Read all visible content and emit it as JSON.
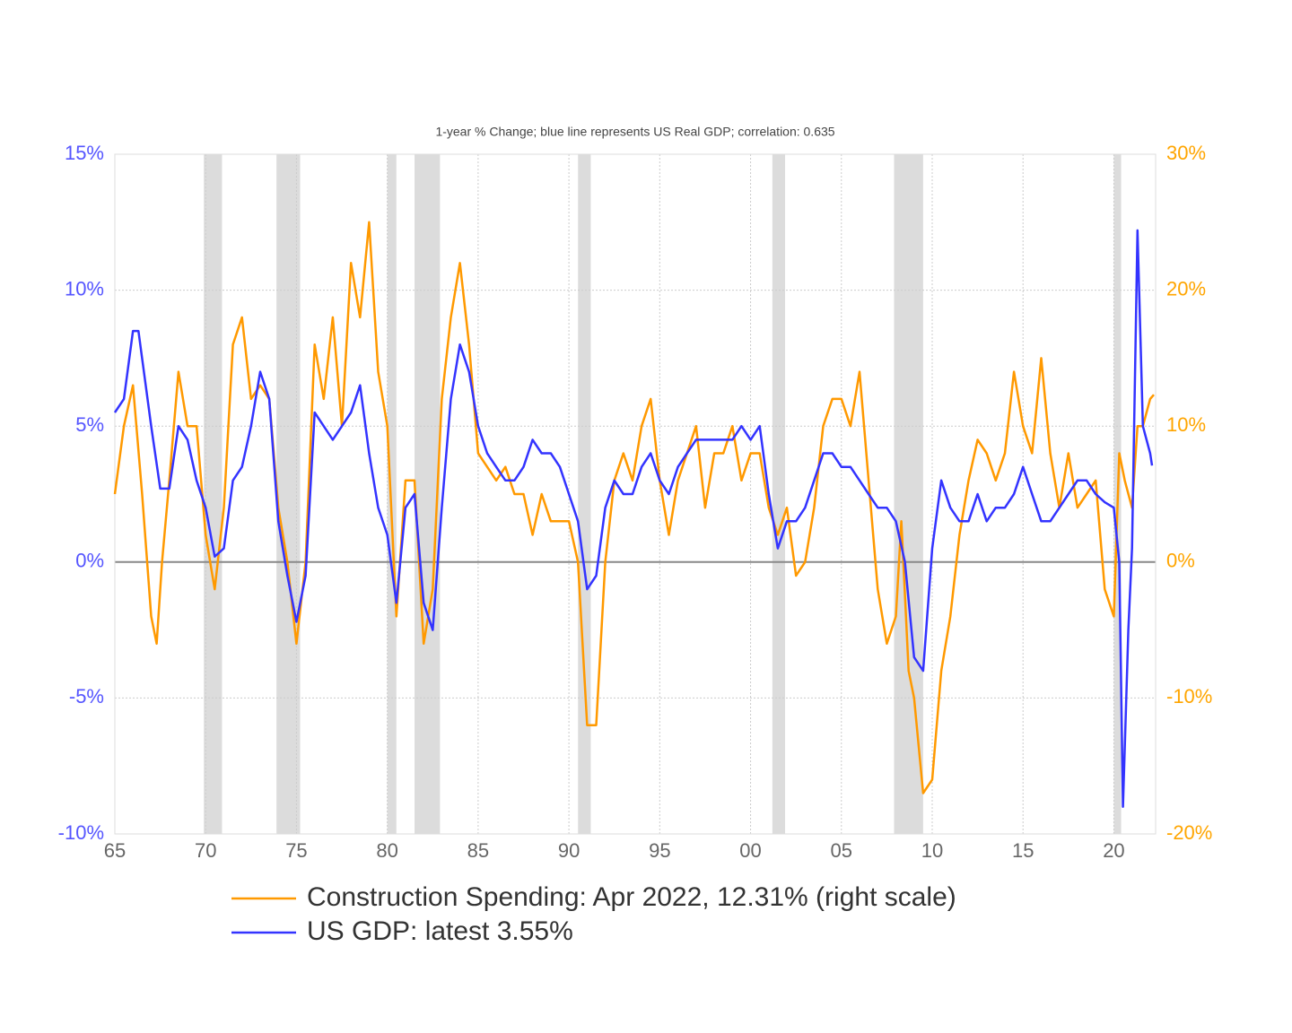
{
  "chart_data": {
    "type": "line",
    "title": "1-year % Change; blue line represents US Real GDP; correlation: 0.635",
    "xlim": [
      1965,
      2022.3
    ],
    "xticks": [
      {
        "value": 1965,
        "label": "65"
      },
      {
        "value": 1970,
        "label": "70"
      },
      {
        "value": 1975,
        "label": "75"
      },
      {
        "value": 1980,
        "label": "80"
      },
      {
        "value": 1985,
        "label": "85"
      },
      {
        "value": 1990,
        "label": "90"
      },
      {
        "value": 1995,
        "label": "95"
      },
      {
        "value": 2000,
        "label": "00"
      },
      {
        "value": 2005,
        "label": "05"
      },
      {
        "value": 2010,
        "label": "10"
      },
      {
        "value": 2015,
        "label": "15"
      },
      {
        "value": 2020,
        "label": "20"
      }
    ],
    "ylim": [
      -10,
      15
    ],
    "yticks": [
      {
        "value": -10,
        "label": "-10%"
      },
      {
        "value": -5,
        "label": "-5%"
      },
      {
        "value": 0,
        "label": "0%"
      },
      {
        "value": 5,
        "label": "5%"
      },
      {
        "value": 10,
        "label": "10%"
      },
      {
        "value": 15,
        "label": "15%"
      }
    ],
    "y2lim": [
      -20,
      30
    ],
    "y2ticks": [
      {
        "value": -20,
        "label": "-20%"
      },
      {
        "value": -10,
        "label": "-10%"
      },
      {
        "value": 0,
        "label": "0%"
      },
      {
        "value": 10,
        "label": "10%"
      },
      {
        "value": 20,
        "label": "20%"
      },
      {
        "value": 30,
        "label": "30%"
      }
    ],
    "grid": true,
    "recessions": [
      [
        1969.9,
        1970.9
      ],
      [
        1973.9,
        1975.2
      ],
      [
        1980.0,
        1980.5
      ],
      [
        1981.5,
        1982.9
      ],
      [
        1990.5,
        1991.2
      ],
      [
        2001.2,
        2001.9
      ],
      [
        2007.9,
        2009.5
      ],
      [
        2020.0,
        2020.4
      ]
    ],
    "series": [
      {
        "name": "Construction Spending: Apr 2022, 12.31% (right scale)",
        "color": "#ff9900",
        "axis": "y2",
        "x": [
          1965,
          1965.5,
          1966,
          1966.5,
          1967,
          1967.3,
          1967.6,
          1968,
          1968.5,
          1969,
          1969.5,
          1970,
          1970.5,
          1971,
          1971.5,
          1972,
          1972.5,
          1973,
          1973.5,
          1974,
          1974.5,
          1975,
          1975.5,
          1976,
          1976.5,
          1977,
          1977.5,
          1978,
          1978.5,
          1979,
          1979.5,
          1980,
          1980.5,
          1981,
          1981.5,
          1982,
          1982.5,
          1983,
          1983.5,
          1984,
          1984.5,
          1985,
          1985.5,
          1986,
          1986.5,
          1987,
          1987.5,
          1988,
          1988.5,
          1989,
          1989.5,
          1990,
          1990.5,
          1991,
          1991.5,
          1992,
          1992.5,
          1993,
          1993.5,
          1994,
          1994.5,
          1995,
          1995.5,
          1996,
          1996.5,
          1997,
          1997.5,
          1998,
          1998.5,
          1999,
          1999.5,
          2000,
          2000.5,
          2001,
          2001.5,
          2002,
          2002.5,
          2003,
          2003.5,
          2004,
          2004.5,
          2005,
          2005.5,
          2006,
          2006.5,
          2007,
          2007.5,
          2008,
          2008.3,
          2008.7,
          2009,
          2009.5,
          2010,
          2010.5,
          2011,
          2011.5,
          2012,
          2012.5,
          2013,
          2013.5,
          2014,
          2014.5,
          2015,
          2015.5,
          2016,
          2016.5,
          2017,
          2017.5,
          2018,
          2018.5,
          2019,
          2019.5,
          2020,
          2020.3,
          2020.6,
          2021,
          2021.3,
          2021.6,
          2022,
          2022.2
        ],
        "values": [
          5,
          10,
          13,
          5,
          -4,
          -6,
          0,
          6,
          14,
          10,
          10,
          2,
          -2,
          4,
          16,
          18,
          12,
          13,
          12,
          4,
          0,
          -6,
          0,
          16,
          12,
          18,
          10,
          22,
          18,
          25,
          14,
          10,
          -4,
          6,
          6,
          -6,
          -2,
          12,
          18,
          22,
          16,
          8,
          7,
          6,
          7,
          5,
          5,
          2,
          5,
          3,
          3,
          3,
          0,
          -12,
          -12,
          0,
          6,
          8,
          6,
          10,
          12,
          6,
          2,
          6,
          8,
          10,
          4,
          8,
          8,
          10,
          6,
          8,
          8,
          4,
          2,
          4,
          -1,
          0,
          4,
          10,
          12,
          12,
          10,
          14,
          6,
          -2,
          -6,
          -4,
          3,
          -8,
          -10,
          -17,
          -16,
          -8,
          -4,
          2,
          6,
          9,
          8,
          6,
          8,
          14,
          10,
          8,
          15,
          8,
          4,
          8,
          4,
          5,
          6,
          -2,
          -4,
          8,
          6,
          4,
          10,
          10,
          12,
          12.31
        ]
      },
      {
        "name": "US GDP: latest 3.55%",
        "color": "#3333ff",
        "x": [
          1965,
          1965.5,
          1966,
          1966.3,
          1967,
          1967.5,
          1968,
          1968.5,
          1969,
          1969.5,
          1970,
          1970.5,
          1971,
          1971.5,
          1972,
          1972.5,
          1973,
          1973.5,
          1974,
          1974.5,
          1975,
          1975.5,
          1976,
          1976.5,
          1977,
          1977.5,
          1978,
          1978.5,
          1979,
          1979.5,
          1980,
          1980.5,
          1981,
          1981.5,
          1982,
          1982.5,
          1983,
          1983.5,
          1984,
          1984.5,
          1985,
          1985.5,
          1986,
          1986.5,
          1987,
          1987.5,
          1988,
          1988.5,
          1989,
          1989.5,
          1990,
          1990.5,
          1991,
          1991.5,
          1992,
          1992.5,
          1993,
          1993.5,
          1994,
          1994.5,
          1995,
          1995.5,
          1996,
          1996.5,
          1997,
          1997.5,
          1998,
          1998.5,
          1999,
          1999.5,
          2000,
          2000.5,
          2001,
          2001.5,
          2002,
          2002.5,
          2003,
          2003.5,
          2004,
          2004.5,
          2005,
          2005.5,
          2006,
          2006.5,
          2007,
          2007.5,
          2008,
          2008.5,
          2009,
          2009.5,
          2010,
          2010.5,
          2011,
          2011.5,
          2012,
          2012.5,
          2013,
          2013.5,
          2014,
          2014.5,
          2015,
          2015.5,
          2016,
          2016.5,
          2017,
          2017.5,
          2018,
          2018.5,
          2019,
          2019.5,
          2020,
          2020.3,
          2020.5,
          2020.8,
          2021,
          2021.3,
          2021.6,
          2022,
          2022.1
        ],
        "values": [
          5.5,
          6,
          8.5,
          8.5,
          5,
          2.7,
          2.7,
          5,
          4.5,
          3,
          2,
          0.2,
          0.5,
          3,
          3.5,
          5,
          7,
          6,
          1.5,
          -0.5,
          -2.2,
          -0.5,
          5.5,
          5,
          4.5,
          5,
          5.5,
          6.5,
          4,
          2,
          1,
          -1.5,
          2,
          2.5,
          -1.5,
          -2.5,
          2,
          6,
          8,
          7,
          5,
          4,
          3.5,
          3,
          3,
          3.5,
          4.5,
          4,
          4,
          3.5,
          2.5,
          1.5,
          -1,
          -0.5,
          2,
          3,
          2.5,
          2.5,
          3.5,
          4,
          3,
          2.5,
          3.5,
          4,
          4.5,
          4.5,
          4.5,
          4.5,
          4.5,
          5,
          4.5,
          5,
          2.5,
          0.5,
          1.5,
          1.5,
          2,
          3,
          4,
          4,
          3.5,
          3.5,
          3,
          2.5,
          2,
          2,
          1.5,
          0,
          -3.5,
          -4,
          0.5,
          3,
          2,
          1.5,
          1.5,
          2.5,
          1.5,
          2,
          2,
          2.5,
          3.5,
          2.5,
          1.5,
          1.5,
          2,
          2.5,
          3,
          3,
          2.5,
          2.2,
          2,
          0,
          -9,
          -2.5,
          0.5,
          12.2,
          5,
          4,
          3.55
        ]
      }
    ]
  }
}
